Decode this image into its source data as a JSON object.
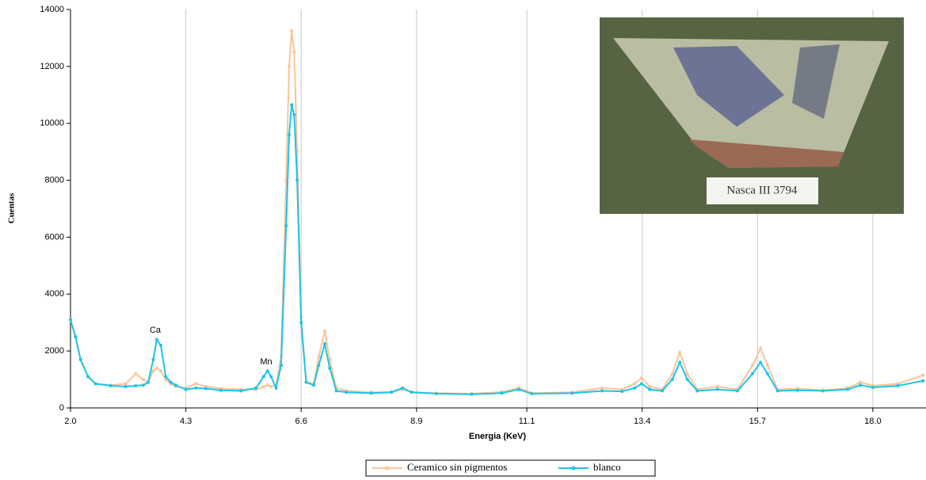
{
  "chart_data": {
    "type": "line",
    "x_label": "Energia (KeV)",
    "y_label": "Cuentas",
    "xlim": [
      2.0,
      19.06
    ],
    "ylim": [
      0,
      14000
    ],
    "xticks": [
      {
        "value": 2.0,
        "label": "2.0"
      },
      4.3,
      6.6,
      8.9,
      11.1,
      13.4,
      15.7,
      {
        "value": 18.0,
        "label": "18.0"
      }
    ],
    "yticks": [
      0,
      2000,
      4000,
      6000,
      8000,
      10000,
      12000,
      14000
    ],
    "grid": true,
    "legend": "bottom",
    "annotations": [
      "Ca",
      "Mn"
    ],
    "inset_label": "Nasca III   3794",
    "x": [
      2.0,
      2.1,
      2.2,
      2.35,
      2.5,
      2.8,
      3.1,
      3.3,
      3.45,
      3.55,
      3.65,
      3.72,
      3.8,
      3.9,
      4.0,
      4.1,
      4.3,
      4.5,
      4.7,
      5.0,
      5.4,
      5.7,
      5.85,
      5.93,
      6.0,
      6.1,
      6.2,
      6.3,
      6.36,
      6.41,
      6.46,
      6.52,
      6.6,
      6.7,
      6.85,
      6.95,
      7.07,
      7.17,
      7.3,
      7.5,
      8.0,
      8.4,
      8.62,
      8.8,
      9.3,
      10.0,
      10.6,
      10.94,
      11.2,
      12.0,
      12.6,
      13.0,
      13.25,
      13.39,
      13.55,
      13.8,
      14.0,
      14.15,
      14.3,
      14.5,
      14.9,
      15.3,
      15.6,
      15.76,
      15.9,
      16.1,
      16.5,
      17.0,
      17.5,
      17.75,
      18.0,
      18.5,
      19.0
    ],
    "series": [
      {
        "name": "Ceramico sin pigmentos",
        "color": "#f8c598",
        "values": [
          3100,
          2500,
          1700,
          1100,
          850,
          800,
          850,
          1200,
          1000,
          900,
          1300,
          1400,
          1300,
          1000,
          850,
          750,
          700,
          850,
          750,
          680,
          650,
          650,
          750,
          800,
          750,
          800,
          1800,
          8000,
          12000,
          13250,
          12500,
          9000,
          3200,
          900,
          850,
          1800,
          2700,
          1700,
          700,
          600,
          550,
          560,
          650,
          560,
          520,
          500,
          560,
          700,
          520,
          550,
          700,
          650,
          850,
          1050,
          750,
          650,
          1200,
          1950,
          1200,
          650,
          750,
          650,
          1500,
          2100,
          1500,
          650,
          680,
          620,
          700,
          900,
          780,
          850,
          1150
        ]
      },
      {
        "name": "blanco",
        "color": "#1cc4e6",
        "values": [
          3100,
          2500,
          1700,
          1100,
          850,
          780,
          750,
          780,
          800,
          900,
          1700,
          2400,
          2200,
          1100,
          900,
          800,
          650,
          700,
          680,
          620,
          600,
          700,
          1100,
          1300,
          1100,
          700,
          1500,
          6400,
          9600,
          10650,
          10300,
          8000,
          3000,
          900,
          800,
          1500,
          2250,
          1400,
          600,
          550,
          520,
          550,
          700,
          550,
          500,
          480,
          520,
          650,
          500,
          520,
          600,
          580,
          700,
          850,
          650,
          600,
          1000,
          1600,
          1000,
          600,
          650,
          600,
          1200,
          1600,
          1200,
          600,
          620,
          600,
          650,
          800,
          720,
          780,
          950
        ]
      }
    ]
  }
}
